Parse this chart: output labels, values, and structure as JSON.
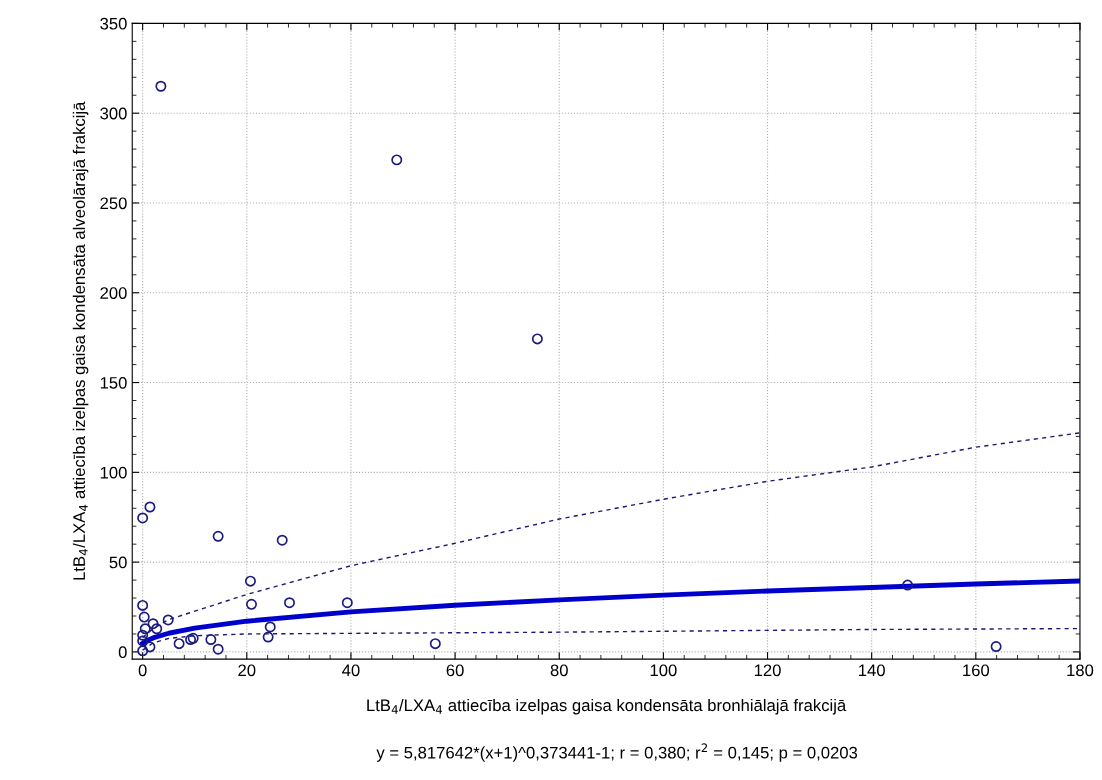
{
  "chart_data": {
    "type": "scatter",
    "xlabel": "LtB$_{4}$/LXA$_{4}$ attiecība izelpas gaisa kondensāta bronhiālajā frakcijā",
    "ylabel": "LtB$_{4}$/LXA$_{4}$ attiecība izelpas gaisa kondensāta alveolārajā frakcijā",
    "annotations": [
      "y = 5,817642*(x+1)^0,373441-1; r = 0,380; r$^{2}$ = 0,145; p = 0,0203"
    ],
    "xlim": [
      -2,
      180
    ],
    "ylim": [
      -4,
      350
    ],
    "xticks": [
      0,
      20,
      40,
      60,
      80,
      100,
      120,
      140,
      160,
      180
    ],
    "yticks": [
      0,
      50,
      100,
      150,
      200,
      250,
      300,
      350
    ],
    "grid": true,
    "marker": "circle",
    "series": [
      {
        "color": "#1c1c80",
        "x": [
          0,
          1.4,
          14.5,
          26.8,
          20.7,
          20.9,
          28.2,
          39.3,
          0,
          0.3,
          2,
          0.5,
          2.7,
          4.9,
          0,
          0,
          1.4,
          0,
          7,
          9.2,
          9.7,
          13.1,
          14.5,
          24.5,
          24.1,
          56.2,
          3.5,
          48.8,
          75.8,
          146.9,
          163.9
        ],
        "values": [
          74.6,
          80.7,
          64.4,
          62.2,
          39.4,
          26.5,
          27.4,
          27.4,
          25.9,
          19.4,
          15.7,
          12.9,
          12.9,
          17.8,
          9.3,
          6.1,
          2.8,
          0.6,
          4.6,
          6.9,
          7.6,
          6.9,
          1.5,
          13.9,
          8.3,
          4.6,
          315,
          274,
          174.3,
          37.2,
          3
        ]
      },
      {
        "type": "line",
        "color": "#0000cc",
        "line_style": "solid",
        "marker": "none",
        "x": [
          0,
          1,
          2,
          5,
          10,
          20,
          40,
          60,
          80,
          100,
          120,
          140,
          160,
          180
        ],
        "values": [
          4.8,
          6.5,
          7.8,
          10.4,
          13.2,
          17.1,
          22.3,
          26,
          29,
          31.6,
          33.9,
          35.9,
          37.8,
          39.5
        ]
      },
      {
        "type": "line",
        "color": "#1a1a70",
        "line_style": "dashed",
        "marker": "none",
        "x": [
          0,
          2,
          5,
          20,
          40,
          60,
          80,
          100,
          120,
          140,
          160,
          180
        ],
        "values": [
          8,
          13,
          18,
          32,
          48,
          60.5,
          74,
          85,
          95,
          103,
          114,
          122
        ]
      },
      {
        "type": "line",
        "color": "#1a1a70",
        "line_style": "dashed",
        "marker": "none",
        "x": [
          0,
          2,
          5,
          10,
          20,
          80,
          140,
          180
        ],
        "values": [
          1,
          5,
          7.5,
          9,
          10,
          11,
          12.5,
          13
        ]
      }
    ]
  }
}
